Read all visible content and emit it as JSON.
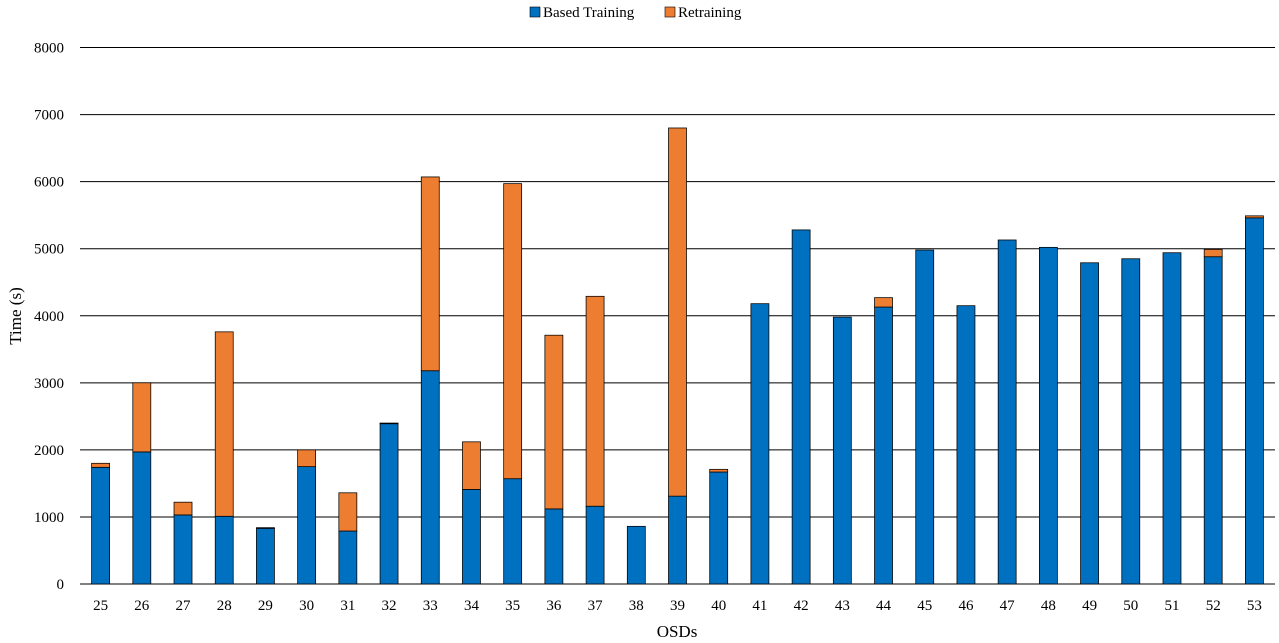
{
  "chart_data": {
    "type": "bar",
    "stacked": true,
    "xlabel": "OSDs",
    "ylabel": "Time (s)",
    "ylim": [
      0,
      8000
    ],
    "yticks": [
      0,
      1000,
      2000,
      3000,
      4000,
      5000,
      6000,
      7000,
      8000
    ],
    "grid": "horizontal",
    "legend": "top-center",
    "categories": [
      "25",
      "26",
      "27",
      "28",
      "29",
      "30",
      "31",
      "32",
      "33",
      "34",
      "35",
      "36",
      "37",
      "38",
      "39",
      "40",
      "41",
      "42",
      "43",
      "44",
      "45",
      "46",
      "47",
      "48",
      "49",
      "50",
      "51",
      "52",
      "53"
    ],
    "series": [
      {
        "name": "Based Training",
        "color": "#0070c0",
        "values": [
          1740,
          1970,
          1030,
          1010,
          830,
          1750,
          790,
          2390,
          3180,
          1410,
          1570,
          1120,
          1160,
          860,
          1310,
          1670,
          4180,
          5280,
          3980,
          4130,
          4980,
          4150,
          5130,
          5020,
          4790,
          4850,
          4940,
          4880,
          5460
        ]
      },
      {
        "name": "Retraining",
        "color": "#ed7d31",
        "values": [
          60,
          1030,
          190,
          2750,
          10,
          250,
          570,
          10,
          2890,
          710,
          4400,
          2590,
          3130,
          0,
          5490,
          40,
          0,
          0,
          0,
          140,
          0,
          0,
          0,
          0,
          0,
          0,
          0,
          110,
          30
        ]
      }
    ]
  }
}
